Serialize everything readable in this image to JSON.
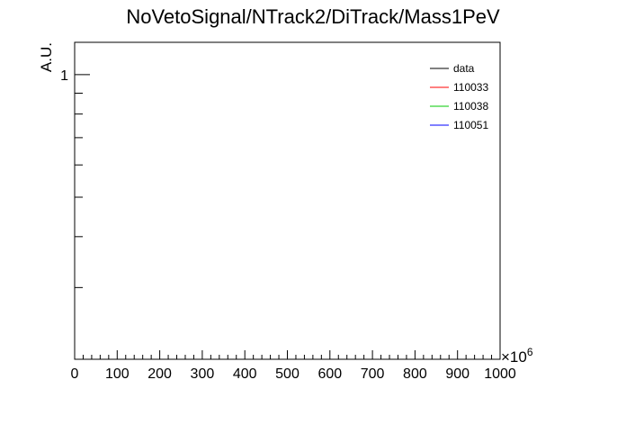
{
  "chart_data": {
    "type": "line",
    "title": "NoVetoSignal/NTrack2/DiTrack/Mass1PeV",
    "xlabel": "",
    "ylabel": "A.U.",
    "x_multiplier": "×10",
    "x_multiplier_exp": "6",
    "xlim": [
      0,
      1000
    ],
    "ylim_log": [
      0.2,
      1.2
    ],
    "log_y": true,
    "x_ticks": [
      "0",
      "100",
      "200",
      "300",
      "400",
      "500",
      "600",
      "700",
      "800",
      "900",
      "1000"
    ],
    "y_tick_label": "1",
    "grid": false,
    "legend_position": "top-right",
    "series": [
      {
        "name": "data",
        "color": "#000000",
        "values": []
      },
      {
        "name": "110033",
        "color": "#ff0000",
        "values": []
      },
      {
        "name": "110038",
        "color": "#00c800",
        "values": []
      },
      {
        "name": "110051",
        "color": "#0000ff",
        "values": []
      }
    ]
  }
}
